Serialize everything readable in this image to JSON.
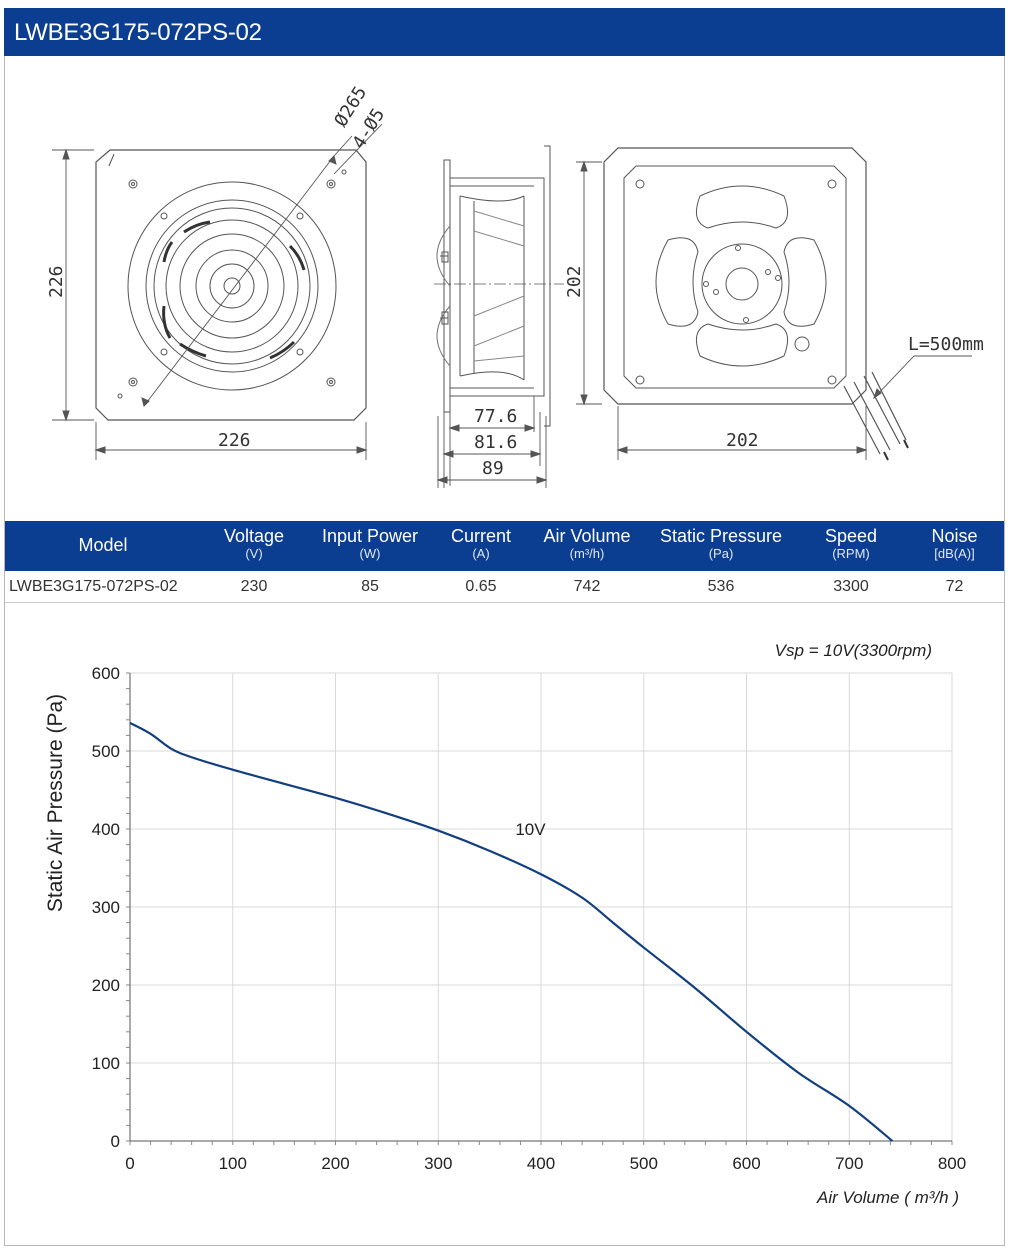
{
  "title": "LWBE3G175-072PS-02",
  "drawing": {
    "front_dia": "Ø265",
    "front_holes": "4-Ø5",
    "front_height": "226",
    "front_width": "226",
    "side_dims": [
      "77.6",
      "81.6",
      "89"
    ],
    "rear_height": "202",
    "rear_width": "202",
    "cable_length": "L=500mm"
  },
  "table": {
    "headers": [
      {
        "label": "Model",
        "unit": ""
      },
      {
        "label": "Voltage",
        "unit": "(V)"
      },
      {
        "label": "Input Power",
        "unit": "(W)"
      },
      {
        "label": "Current",
        "unit": "(A)"
      },
      {
        "label": "Air Volume",
        "unit": "(m³/h)"
      },
      {
        "label": "Static Pressure",
        "unit": "(Pa)"
      },
      {
        "label": "Speed",
        "unit": "(RPM)"
      },
      {
        "label": "Noise",
        "unit": "[dB(A)]"
      }
    ],
    "row": [
      "LWBE3G175-072PS-02",
      "230",
      "85",
      "0.65",
      "742",
      "536",
      "3300",
      "72"
    ]
  },
  "chart_data": {
    "type": "line",
    "ylabel": "Static Air Pressure  (Pa)",
    "xlabel": "Air Volume ( m³/h )",
    "annotation": "Vsp = 10V(3300rpm)",
    "xlim": [
      0,
      800
    ],
    "ylim": [
      0,
      600
    ],
    "xticks": [
      0,
      100,
      200,
      300,
      400,
      500,
      600,
      700,
      800
    ],
    "yticks": [
      0,
      100,
      200,
      300,
      400,
      500,
      600
    ],
    "grid": true,
    "series": [
      {
        "name": "10V",
        "color": "#123f7e",
        "x": [
          0,
          20,
          40,
          60,
          100,
          150,
          200,
          250,
          300,
          350,
          400,
          440,
          470,
          500,
          550,
          600,
          650,
          700,
          742
        ],
        "y": [
          536,
          522,
          503,
          492,
          476,
          458,
          440,
          420,
          398,
          372,
          342,
          312,
          280,
          248,
          196,
          140,
          88,
          45,
          0
        ]
      }
    ]
  }
}
